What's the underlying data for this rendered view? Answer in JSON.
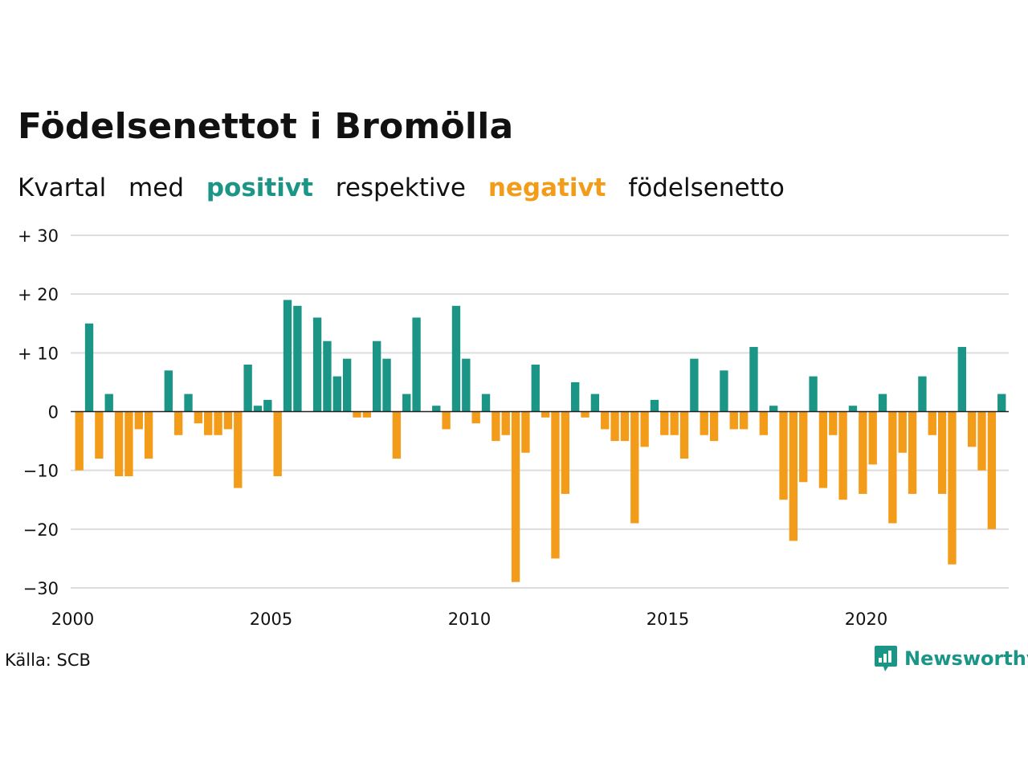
{
  "title": "Födelsenettot i Bromölla",
  "subtitle": {
    "w1": "Kvartal",
    "w2": "med",
    "positive": "positivt",
    "w3": "respektive",
    "negative": "negativt",
    "w4": "födelsenetto"
  },
  "source": "Källa: SCB",
  "brand": "Newsworthy",
  "colors": {
    "positive": "#1a9586",
    "negative": "#f39c19",
    "grid": "#dddddd",
    "axis": "#222222"
  },
  "chart_data": {
    "type": "bar",
    "x_start": "2000 Q1",
    "x_ticks": [
      "2000",
      "2005",
      "2010",
      "2015",
      "2020"
    ],
    "y_ticks": [
      "+ 30",
      "+ 20",
      "+ 10",
      "0",
      "−10",
      "−20",
      "−30"
    ],
    "ylim": [
      -30,
      30
    ],
    "grid": true,
    "values": [
      -10,
      15,
      -8,
      3,
      -11,
      -11,
      -3,
      -8,
      0,
      7,
      -4,
      3,
      -2,
      -4,
      -4,
      -3,
      -13,
      8,
      1,
      2,
      -11,
      19,
      18,
      0,
      16,
      12,
      6,
      9,
      -1,
      -1,
      12,
      9,
      -8,
      3,
      16,
      0,
      1,
      -3,
      18,
      9,
      -2,
      3,
      -5,
      -4,
      -29,
      -7,
      8,
      -1,
      -25,
      -14,
      5,
      -1,
      3,
      -3,
      -5,
      -5,
      -19,
      -6,
      2,
      -4,
      -4,
      -8,
      9,
      -4,
      -5,
      7,
      -3,
      -3,
      11,
      -4,
      1,
      -15,
      -22,
      -12,
      6,
      -13,
      -4,
      -15,
      1,
      -14,
      -9,
      3,
      -19,
      -7,
      -14,
      6,
      -4,
      -14,
      -26,
      11,
      -6,
      -10,
      -20,
      3
    ]
  }
}
